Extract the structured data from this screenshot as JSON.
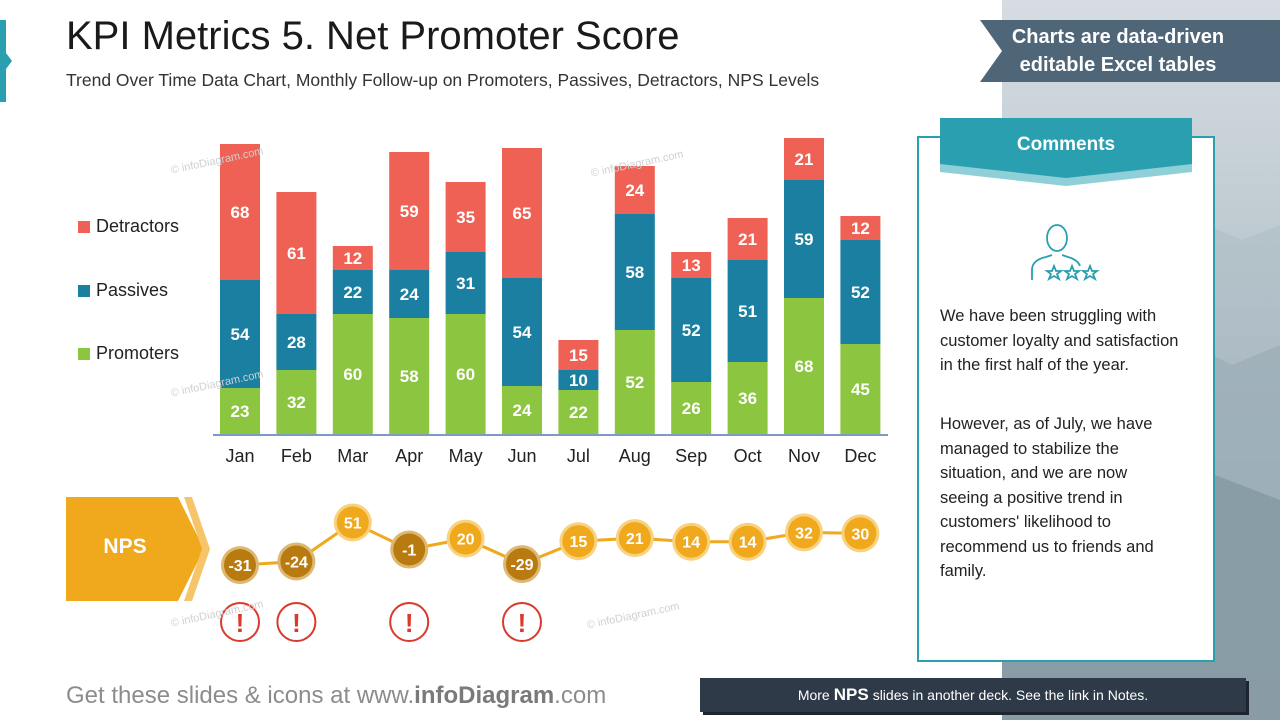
{
  "header": {
    "title": "KPI Metrics 5. Net Promoter Score",
    "subtitle": "Trend Over Time Data Chart, Monthly Follow-up on Promoters, Passives, Detractors, NPS Levels"
  },
  "banner": {
    "line1": "Charts are data-driven",
    "line2": "editable Excel tables"
  },
  "colors": {
    "detractors": "#ef6155",
    "passives": "#1a7fa0",
    "promoters": "#8cc53f",
    "nps_positive": "#f0a81c",
    "nps_negative": "#b97a10",
    "accent": "#2a9fb0",
    "alert": "#d93a2b"
  },
  "watermark": "© infoDiagram.com",
  "chart_data": {
    "type": "bar",
    "stacked": true,
    "categories": [
      "Jan",
      "Feb",
      "Mar",
      "Apr",
      "May",
      "Jun",
      "Jul",
      "Aug",
      "Sep",
      "Oct",
      "Nov",
      "Dec"
    ],
    "series": [
      {
        "name": "Promoters",
        "values": [
          23,
          32,
          60,
          58,
          60,
          24,
          22,
          52,
          26,
          36,
          68,
          45
        ]
      },
      {
        "name": "Passives",
        "values": [
          54,
          28,
          22,
          24,
          31,
          54,
          10,
          58,
          52,
          51,
          59,
          52
        ]
      },
      {
        "name": "Detractors",
        "values": [
          68,
          61,
          12,
          59,
          35,
          65,
          15,
          24,
          13,
          21,
          21,
          12
        ]
      }
    ],
    "legend": [
      "Detractors",
      "Passives",
      "Promoters"
    ],
    "legend_position": "left",
    "nps": {
      "label": "NPS",
      "values": [
        -31,
        -24,
        51,
        -1,
        20,
        -29,
        15,
        21,
        14,
        14,
        32,
        30
      ],
      "alerts": [
        "Jan",
        "Feb",
        "Apr",
        "Jun"
      ]
    }
  },
  "comments": {
    "title": "Comments",
    "icon": "person-rating-icon",
    "paragraph1": "We have been struggling with customer loyalty and satisfaction in the first half of the year.",
    "paragraph2": "However, as of July, we have managed to stabilize the situation, and we are now seeing a positive trend in customers' likelihood to recommend us to friends and family."
  },
  "footer": {
    "left_prefix": "Get these slides & icons at www.",
    "left_brand": "infoDiagram",
    "left_suffix": ".com",
    "right_prefix": "More",
    "right_bold": "NPS",
    "right_suffix": "slides in another deck. See the link in Notes."
  }
}
